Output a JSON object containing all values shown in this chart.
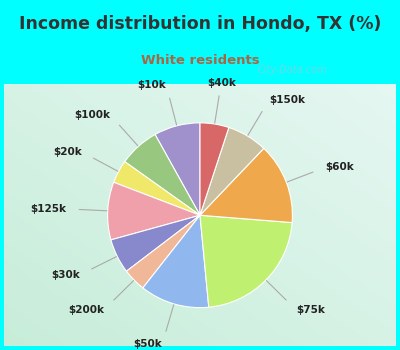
{
  "title": "Income distribution in Hondo, TX (%)",
  "subtitle": "White residents",
  "title_color": "#333333",
  "subtitle_color": "#aa6644",
  "background_outer": "#00ffff",
  "background_inner_tl": "#c8e8d8",
  "background_inner_br": "#e8f8f0",
  "labels": [
    "$10k",
    "$100k",
    "$20k",
    "$125k",
    "$30k",
    "$200k",
    "$50k",
    "$75k",
    "$60k",
    "$150k",
    "$40k"
  ],
  "values": [
    8,
    7,
    4,
    10,
    6,
    4,
    12,
    22,
    14,
    7,
    5
  ],
  "colors": [
    "#a090cc",
    "#98c880",
    "#f0e868",
    "#f0a0aa",
    "#8888cc",
    "#f0b898",
    "#90b8ee",
    "#c0f070",
    "#f0a84c",
    "#c8c0a0",
    "#d86868"
  ],
  "startangle": 90,
  "watermark": "City-Data.com"
}
